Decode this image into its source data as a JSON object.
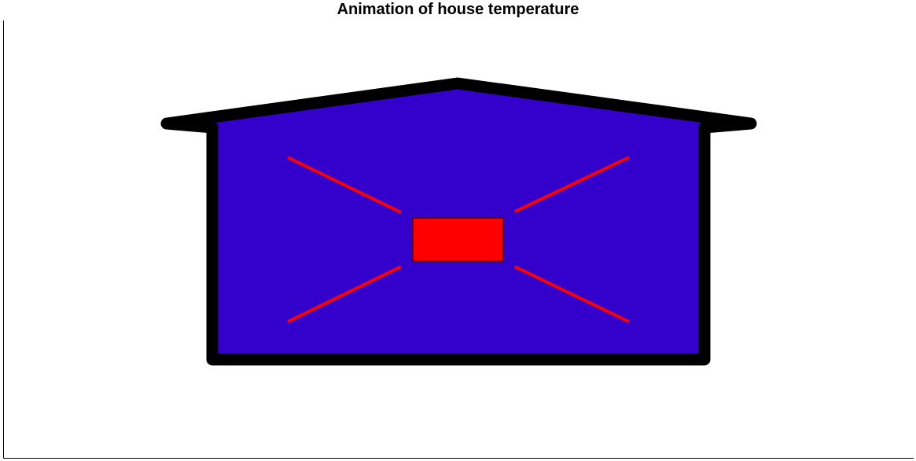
{
  "figure": {
    "title": "Animation of house temperature"
  },
  "colors": {
    "house_fill": "#3300cc",
    "wall_outline": "#000000",
    "heater_fill": "#ff0000",
    "heat_rays": "#ff0000",
    "axes_line": "#000000",
    "background": "#ffffff"
  },
  "icons": {
    "house": "house-icon",
    "heater": "heater-icon",
    "heat_ray": "heat-ray-icon"
  }
}
